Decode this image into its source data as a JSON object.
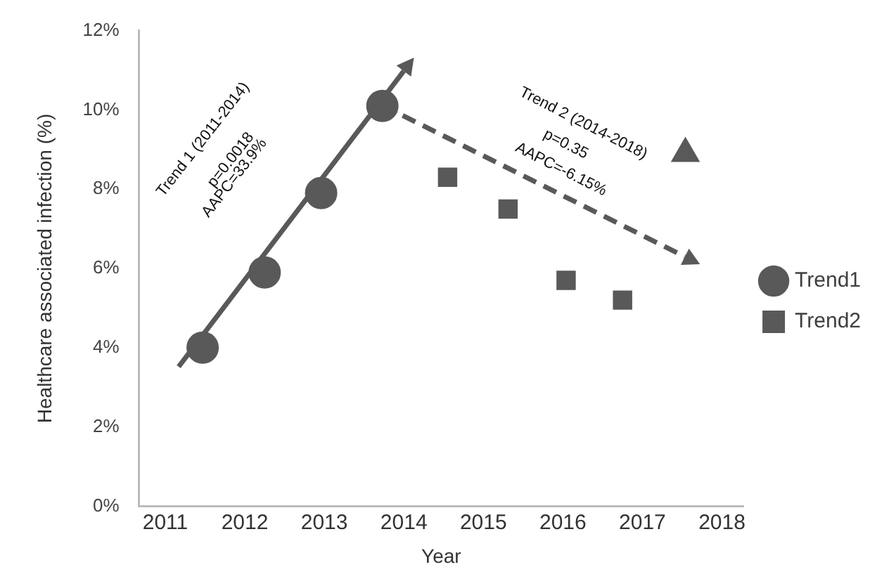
{
  "chart_data": {
    "type": "scatter",
    "xlabel": "Year",
    "ylabel": "Healthcare associated infection (%)",
    "xlim": [
      2010.67,
      2018.27
    ],
    "xticks": [
      2011,
      2012,
      2013,
      2014,
      2015,
      2016,
      2017,
      2018
    ],
    "ylim": [
      0,
      12
    ],
    "yticks": [
      {
        "value": 0,
        "label": "0%"
      },
      {
        "value": 2,
        "label": "2%"
      },
      {
        "value": 4,
        "label": "4%"
      },
      {
        "value": 6,
        "label": "6%"
      },
      {
        "value": 8,
        "label": "8%"
      },
      {
        "value": 10,
        "label": "10%"
      },
      {
        "value": 12,
        "label": "12%"
      }
    ],
    "grid": false,
    "legend": "right",
    "series": [
      {
        "name": "Trend1",
        "type": "scatter",
        "marker": "circle",
        "color": "#595959",
        "x": [
          2011.47,
          2012.25,
          2012.96,
          2013.73
        ],
        "values": [
          4.0,
          5.9,
          7.9,
          10.1
        ]
      },
      {
        "name": "Trend2",
        "type": "scatter",
        "marker": "square",
        "color": "#595959",
        "x": [
          2014.55,
          2015.31,
          2016.04,
          2016.75
        ],
        "values": [
          8.3,
          7.5,
          5.7,
          5.2
        ]
      },
      {
        "type": "scatter",
        "marker": "triangle",
        "color": "#595959",
        "x": [
          2017.54
        ],
        "values": [
          8.9
        ]
      }
    ],
    "annotations": [
      "Trend 1 (2011-2014)",
      "p=0.0018",
      "AAPC=33.9%",
      "Trend 2 (2014-2018)",
      "p=0.35",
      "AAPC=-6.15%"
    ]
  }
}
